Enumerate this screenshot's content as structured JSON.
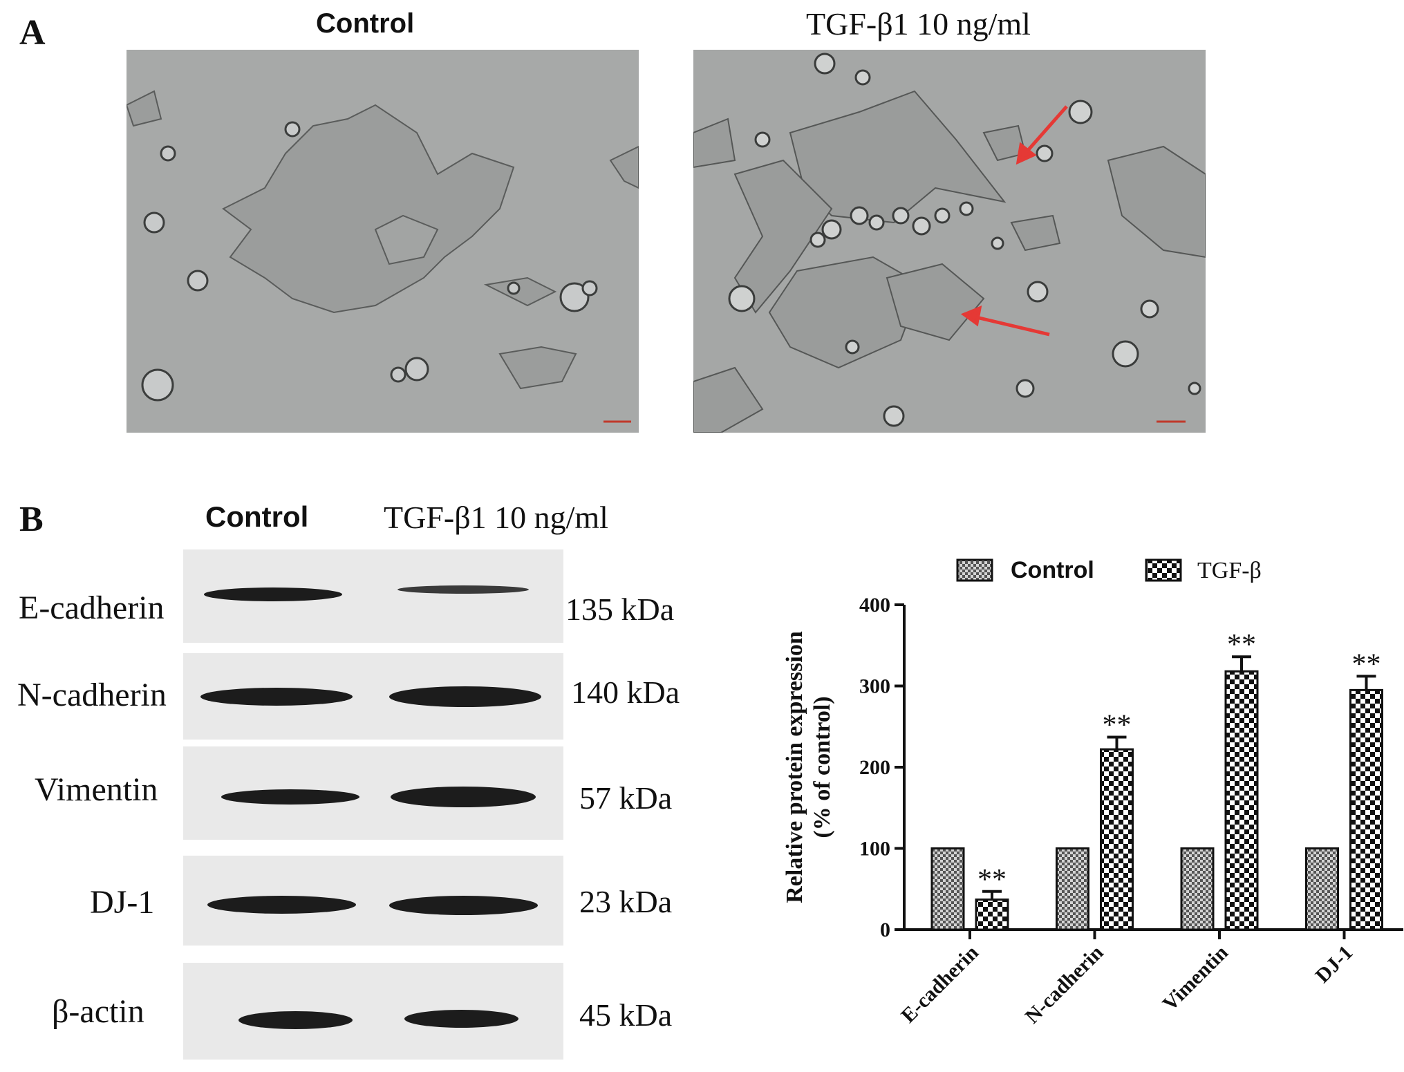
{
  "panel_a": {
    "letter": "A",
    "control_label": "Control",
    "treated_label": "TGF-β1 10 ng/ml"
  },
  "panel_b": {
    "letter": "B",
    "blot_headers": {
      "control": "Control",
      "treated": "TGF-β1 10 ng/ml"
    },
    "blot_rows": [
      {
        "protein": "E-cadherin",
        "size": "135 kDa"
      },
      {
        "protein": "N-cadherin",
        "size": "140 kDa"
      },
      {
        "protein": "Vimentin",
        "size": "57 kDa"
      },
      {
        "protein": "DJ-1",
        "size": "23 kDa"
      },
      {
        "protein": "β-actin",
        "size": "45 kDa"
      }
    ]
  },
  "chart_data": {
    "type": "bar",
    "categories": [
      "E-cadherin",
      "N-cadherin",
      "Vimentin",
      "DJ-1"
    ],
    "series": [
      {
        "name": "Control",
        "values": [
          100,
          100,
          100,
          100
        ],
        "errors": [
          0,
          0,
          0,
          0
        ]
      },
      {
        "name": "TGF-β",
        "values": [
          37,
          222,
          318,
          295
        ],
        "errors": [
          10,
          15,
          18,
          17
        ]
      }
    ],
    "significance": [
      "**",
      "**",
      "**",
      "**"
    ],
    "ylabel_line1": "Relative protein expression",
    "ylabel_line2": "(% of control)",
    "ylim": [
      0,
      400
    ],
    "yticks": [
      0,
      100,
      200,
      300,
      400
    ],
    "legend_position": "top",
    "grid": false
  }
}
